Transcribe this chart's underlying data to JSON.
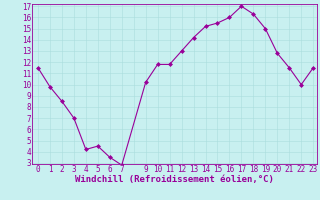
{
  "x": [
    0,
    1,
    2,
    3,
    4,
    5,
    6,
    7,
    9,
    10,
    11,
    12,
    13,
    14,
    15,
    16,
    17,
    18,
    19,
    20,
    21,
    22,
    23
  ],
  "y": [
    11.5,
    9.8,
    8.5,
    7.0,
    4.2,
    4.5,
    3.5,
    2.8,
    10.2,
    11.8,
    11.8,
    13.0,
    14.2,
    15.2,
    15.5,
    16.0,
    17.0,
    16.3,
    15.0,
    12.8,
    11.5,
    10.0,
    11.5
  ],
  "line_color": "#990099",
  "marker": "D",
  "markersize": 2.0,
  "linewidth": 0.8,
  "bg_color": "#c8f0f0",
  "grid_color": "#aadddd",
  "xlabel": "Windchill (Refroidissement éolien,°C)",
  "xlabel_fontsize": 6.5,
  "ytick_labels": [
    "3",
    "4",
    "5",
    "6",
    "7",
    "8",
    "9",
    "10",
    "11",
    "12",
    "13",
    "14",
    "15",
    "16",
    "17"
  ],
  "ytick_values": [
    3,
    4,
    5,
    6,
    7,
    8,
    9,
    10,
    11,
    12,
    13,
    14,
    15,
    16,
    17
  ],
  "xtick_labels": [
    "0",
    "1",
    "2",
    "3",
    "4",
    "5",
    "6",
    "7",
    "",
    "9",
    "10",
    "11",
    "12",
    "13",
    "14",
    "15",
    "16",
    "17",
    "18",
    "19",
    "20",
    "21",
    "22",
    "23"
  ],
  "xtick_values": [
    0,
    1,
    2,
    3,
    4,
    5,
    6,
    7,
    8,
    9,
    10,
    11,
    12,
    13,
    14,
    15,
    16,
    17,
    18,
    19,
    20,
    21,
    22,
    23
  ],
  "ylim": [
    3,
    17
  ],
  "xlim": [
    -0.5,
    23.3
  ],
  "tick_color": "#990099",
  "tick_fontsize": 5.5,
  "spine_color": "#990099"
}
